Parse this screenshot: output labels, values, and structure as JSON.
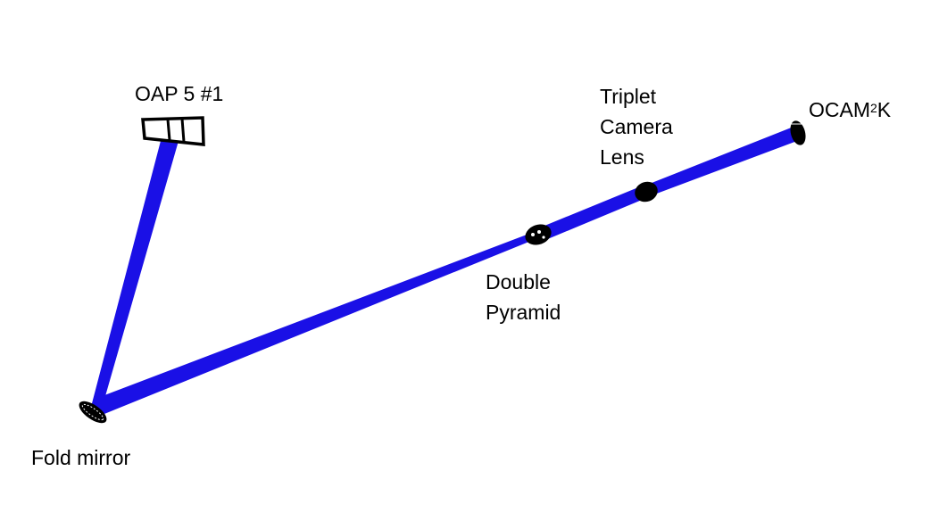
{
  "colors": {
    "beam": "#1a10e6",
    "component": "#000000",
    "background": "#ffffff"
  },
  "labels": {
    "oap": "OAP 5 #1",
    "fold_mirror": "Fold mirror",
    "double_pyramid_line1": "Double",
    "double_pyramid_line2": "Pyramid",
    "triplet_line1": "Triplet",
    "triplet_line2": "Camera",
    "triplet_line3": "Lens",
    "ocam_base": "OCAM",
    "ocam_sup": "2",
    "ocam_suffix": "K"
  }
}
